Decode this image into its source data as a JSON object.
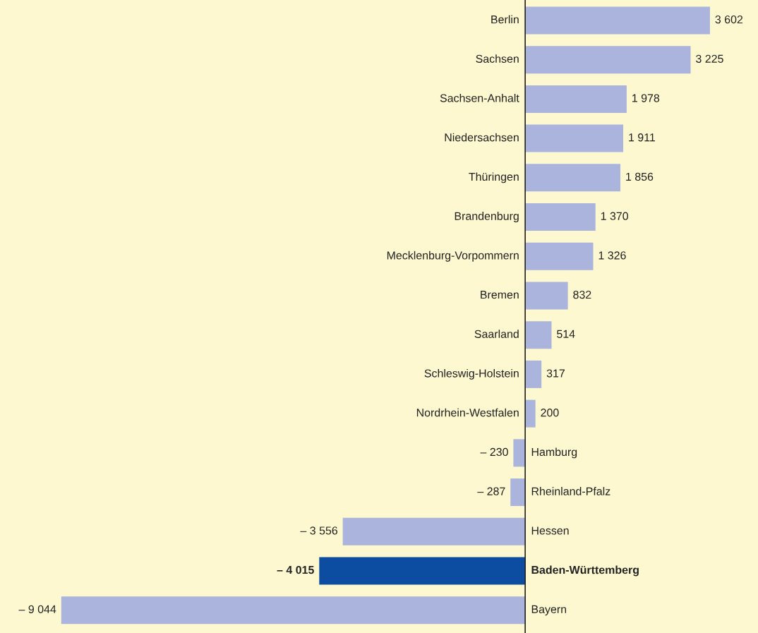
{
  "chart_data": {
    "type": "bar",
    "orientation": "horizontal",
    "categories": [
      "Berlin",
      "Sachsen",
      "Sachsen-Anhalt",
      "Niedersachsen",
      "Thüringen",
      "Brandenburg",
      "Mecklenburg-Vorpommern",
      "Bremen",
      "Saarland",
      "Schleswig-Holstein",
      "Nordrhein-Westfalen",
      "Hamburg",
      "Rheinland-Pfalz",
      "Hessen",
      "Baden-Württemberg",
      "Bayern"
    ],
    "values": [
      3602,
      3225,
      1978,
      1911,
      1856,
      1370,
      1326,
      832,
      514,
      317,
      200,
      -230,
      -287,
      -3556,
      -4015,
      -9044
    ],
    "value_labels": [
      "3 602",
      "3 225",
      "1 978",
      "1 911",
      "1 856",
      "1 370",
      "1 326",
      "832",
      "514",
      "317",
      "200",
      "– 230",
      "– 287",
      "– 3 556",
      "– 4 015",
      "– 9 044"
    ],
    "colors": [
      "#aab4dc",
      "#aab4dc",
      "#aab4dc",
      "#aab4dc",
      "#aab4dc",
      "#aab4dc",
      "#aab4dc",
      "#aab4dc",
      "#aab4dc",
      "#aab4dc",
      "#aab4dc",
      "#aab4dc",
      "#aab4dc",
      "#aab4dc",
      "#0d4da1",
      "#aab4dc"
    ],
    "legend": false
  }
}
